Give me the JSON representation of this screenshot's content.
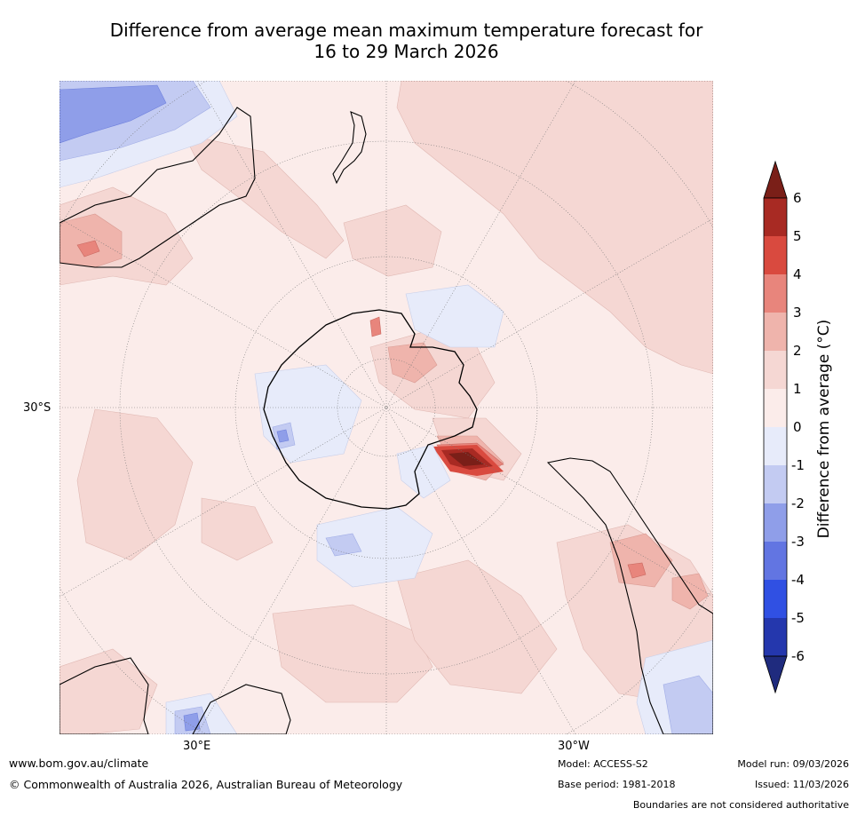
{
  "title": {
    "line1": "Difference from average mean maximum temperature forecast for",
    "line2": "16 to 29 March 2026"
  },
  "map": {
    "projection": "south-polar-stereographic",
    "lat_label_left": "30°S",
    "lon_label_left": "30°E",
    "lon_label_right": "30°W"
  },
  "colorbar": {
    "title": "Difference from average (°C)",
    "ticks": [
      "6",
      "5",
      "4",
      "3",
      "2",
      "1",
      "0",
      "-1",
      "-2",
      "-3",
      "-4",
      "-5",
      "-6"
    ],
    "colors": {
      "over": "#7a1f18",
      "5to6": "#a82a23",
      "4to5": "#d94a3f",
      "3to4": "#e8857c",
      "2to3": "#efb4ac",
      "1to2": "#f5d7d3",
      "0to1": "#fbecea",
      "m1to0": "#e7ebfa",
      "m2tom1": "#c3cbf2",
      "m3tom2": "#8f9ee9",
      "m4tom3": "#6275e2",
      "m5tom4": "#3050e3",
      "m6tom5": "#2437ad",
      "under": "#1f2b7e"
    }
  },
  "footer": {
    "website": "www.bom.gov.au/climate",
    "copyright": "© Commonwealth of Australia 2026, Australian Bureau of Meteorology",
    "model": "Model: ACCESS-S2",
    "base_period": "Base period: 1981-2018",
    "model_run": "Model run: 09/03/2026",
    "issued": "Issued: 11/03/2026",
    "disclaimer": "Boundaries are not considered authoritative"
  }
}
